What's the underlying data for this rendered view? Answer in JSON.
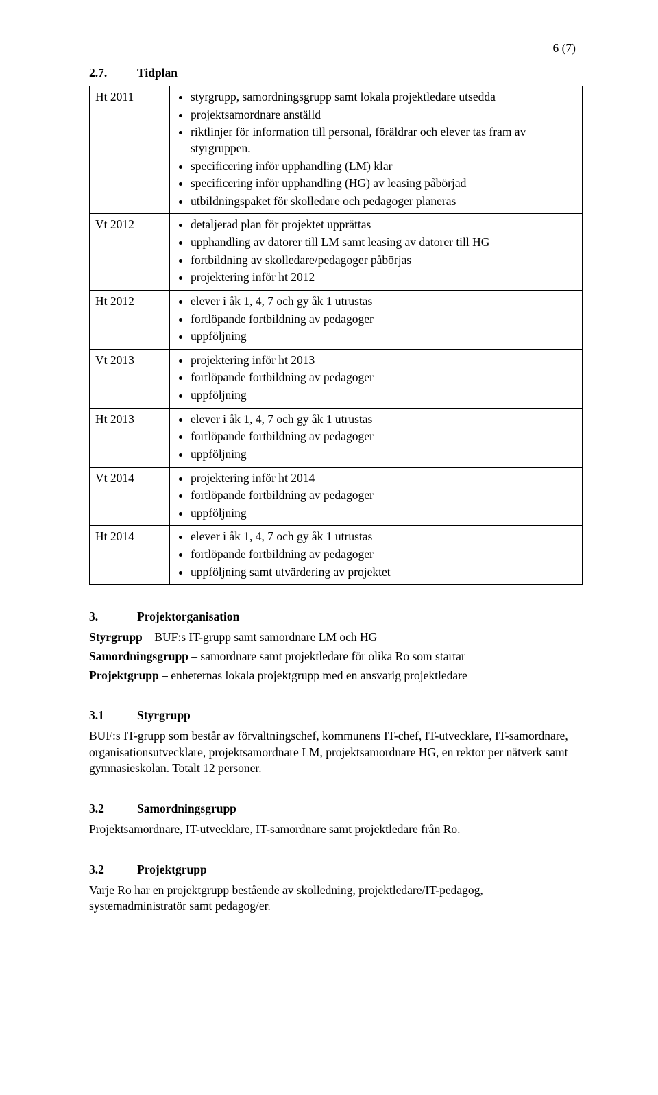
{
  "pageNumber": "6 (7)",
  "section27": {
    "num": "2.7.",
    "title": "Tidplan"
  },
  "periods": [
    {
      "period": "Ht 2011",
      "items": [
        "styrgrupp, samordningsgrupp samt lokala projektledare utsedda",
        "projektsamordnare anställd",
        "riktlinjer för information till personal, föräldrar och elever tas fram av styrgruppen.",
        "specificering inför upphandling (LM) klar",
        "specificering inför upphandling (HG) av leasing påbörjad",
        "utbildningspaket för skolledare och pedagoger planeras"
      ]
    },
    {
      "period": "Vt 2012",
      "items": [
        "detaljerad plan för projektet upprättas",
        "upphandling av datorer till LM samt leasing av datorer till HG",
        "fortbildning av skolledare/pedagoger påbörjas",
        "projektering inför ht 2012"
      ]
    },
    {
      "period": "Ht 2012",
      "items": [
        "elever i åk 1, 4, 7 och gy åk 1 utrustas",
        "fortlöpande fortbildning av pedagoger",
        "uppföljning"
      ]
    },
    {
      "period": "Vt 2013",
      "items": [
        "projektering inför ht 2013",
        "fortlöpande fortbildning av pedagoger",
        "uppföljning"
      ]
    },
    {
      "period": "Ht 2013",
      "items": [
        "elever i åk 1, 4, 7 och gy åk 1 utrustas",
        "fortlöpande fortbildning av pedagoger",
        "uppföljning"
      ]
    },
    {
      "period": "Vt 2014",
      "items": [
        "projektering inför ht 2014",
        "fortlöpande fortbildning av pedagoger",
        "uppföljning"
      ]
    },
    {
      "period": "Ht 2014",
      "items": [
        "elever i åk 1, 4, 7 och gy åk 1 utrustas",
        "fortlöpande fortbildning av pedagoger",
        "uppföljning samt utvärdering av projektet"
      ]
    }
  ],
  "section3": {
    "num": "3.",
    "title": "Projektorganisation"
  },
  "section3body": {
    "line1_bold": "Styrgrupp",
    "line1_rest": " – BUF:s IT-grupp samt samordnare LM och HG",
    "line2_bold": "Samordningsgrupp",
    "line2_rest": " – samordnare samt projektledare för olika Ro som startar",
    "line3_bold": "Projektgrupp",
    "line3_rest": " – enheternas lokala projektgrupp med en ansvarig projektledare"
  },
  "section31": {
    "num": "3.1",
    "title": "Styrgrupp"
  },
  "section31body": "BUF:s IT-grupp som består av förvaltningschef, kommunens IT-chef, IT-utvecklare, IT-samordnare, organisationsutvecklare, projektsamordnare LM, projektsamordnare HG, en rektor per nätverk samt gymnasieskolan. Totalt 12 personer.",
  "section32a": {
    "num": "3.2",
    "title": "Samordningsgrupp"
  },
  "section32a_body": "Projektsamordnare, IT-utvecklare, IT-samordnare samt projektledare från Ro.",
  "section32b": {
    "num": "3.2",
    "title": "Projektgrupp"
  },
  "section32b_body": "Varje Ro har en projektgrupp bestående av skolledning, projektledare/IT-pedagog, systemadministratör samt pedagog/er."
}
